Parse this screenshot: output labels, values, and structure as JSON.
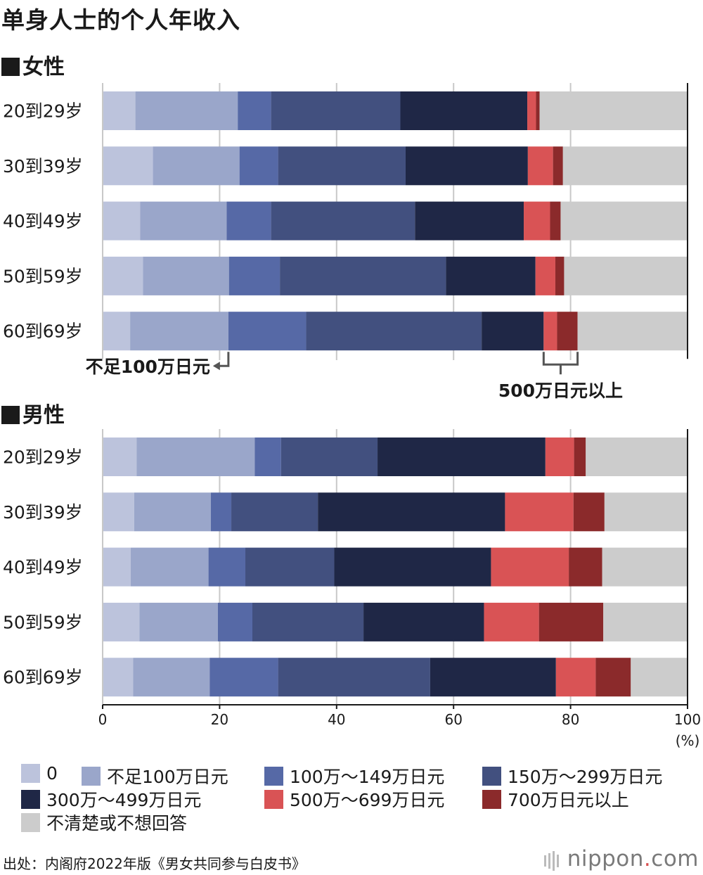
{
  "title": "单身人士的个人年收入",
  "sections": {
    "female": "女性",
    "male": "男性"
  },
  "chart_data": {
    "type": "bar",
    "stacked": true,
    "orientation": "horizontal",
    "xlim": [
      0,
      100
    ],
    "x_ticks": [
      "0",
      "20",
      "40",
      "60",
      "80",
      "100"
    ],
    "x_unit": "(%)",
    "categories": [
      "20到29岁",
      "30到39岁",
      "40到49岁",
      "50到59岁",
      "60到69岁"
    ],
    "series_names": [
      "0",
      "不足100万日元",
      "100万～149万日元",
      "150万～299万日元",
      "300万～499万日元",
      "500万～699万日元",
      "700万日元以上",
      "不清楚或不想回答"
    ],
    "series_colors": [
      "#bcc3dc",
      "#9aa6ca",
      "#5669a6",
      "#42507f",
      "#1f2746",
      "#d95355",
      "#8b2a2b",
      "#cccccc"
    ],
    "panels": [
      {
        "name": "女性",
        "values": [
          [
            5.6,
            17.5,
            5.7,
            22.1,
            21.7,
            1.5,
            0.6,
            25.3
          ],
          [
            8.6,
            14.8,
            6.6,
            21.8,
            20.9,
            4.3,
            1.7,
            21.3
          ],
          [
            6.4,
            14.8,
            7.6,
            24.6,
            18.6,
            4.5,
            1.8,
            21.7
          ],
          [
            6.9,
            14.7,
            8.7,
            28.4,
            15.3,
            3.4,
            1.5,
            21.1
          ],
          [
            4.7,
            16.8,
            13.3,
            30.0,
            10.6,
            2.3,
            3.5,
            18.8
          ]
        ],
        "annotations": [
          "不足100万日元",
          "500万日元以上"
        ]
      },
      {
        "name": "男性",
        "values": [
          [
            5.8,
            20.2,
            4.5,
            16.5,
            28.7,
            4.9,
            2.0,
            17.4
          ],
          [
            5.4,
            13.1,
            3.5,
            14.8,
            32.0,
            11.7,
            5.3,
            14.2
          ],
          [
            4.8,
            13.3,
            6.3,
            15.2,
            26.8,
            13.3,
            5.7,
            14.6
          ],
          [
            6.3,
            13.4,
            5.9,
            19.0,
            20.6,
            9.4,
            11.0,
            14.4
          ],
          [
            5.2,
            13.1,
            11.7,
            26.0,
            21.5,
            6.8,
            6.0,
            9.7
          ]
        ]
      }
    ]
  },
  "legend": {
    "items": [
      {
        "label": "0",
        "color": "#bcc3dc"
      },
      {
        "label": "不足100万日元",
        "color": "#9aa6ca"
      },
      {
        "label": "100万～149万日元",
        "color": "#5669a6"
      },
      {
        "label": "150万～299万日元",
        "color": "#42507f"
      },
      {
        "label": "300万～499万日元",
        "color": "#1f2746"
      },
      {
        "label": "500万～699万日元",
        "color": "#d95355"
      },
      {
        "label": "700万日元以上",
        "color": "#8b2a2b"
      },
      {
        "label": "不清楚或不想回答",
        "color": "#cccccc"
      }
    ]
  },
  "source": "出处：内阁府2022年版《男女共同参与白皮书》",
  "logo": {
    "name": "nippon",
    "dot": ".",
    "suffix": "com"
  }
}
